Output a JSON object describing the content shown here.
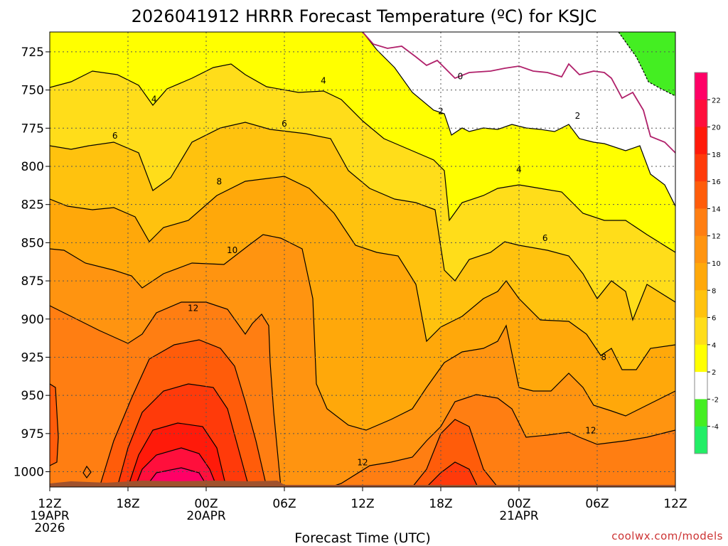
{
  "chart_data": {
    "type": "contour",
    "title": "2026041912 HRRR Forecast Temperature (ºC) for KSJC",
    "xlabel": "Forecast Time (UTC)",
    "ylabel": "",
    "y_ticks": [
      "725",
      "750",
      "775",
      "800",
      "825",
      "850",
      "875",
      "900",
      "925",
      "950",
      "975",
      "1000"
    ],
    "y_values": [
      725,
      750,
      775,
      800,
      825,
      850,
      875,
      900,
      925,
      950,
      975,
      1000
    ],
    "y_range": [
      712,
      1010
    ],
    "y_inverted": true,
    "x_range_hours": [
      0,
      48
    ],
    "x_ticks": [
      {
        "hour": 0,
        "line1": "12Z",
        "line2": "19APR",
        "line3": "2026"
      },
      {
        "hour": 6,
        "line1": "18Z",
        "line2": "",
        "line3": ""
      },
      {
        "hour": 12,
        "line1": "00Z",
        "line2": "20APR",
        "line3": ""
      },
      {
        "hour": 18,
        "line1": "06Z",
        "line2": "",
        "line3": ""
      },
      {
        "hour": 24,
        "line1": "12Z",
        "line2": "",
        "line3": ""
      },
      {
        "hour": 30,
        "line1": "18Z",
        "line2": "",
        "line3": ""
      },
      {
        "hour": 36,
        "line1": "00Z",
        "line2": "21APR",
        "line3": ""
      },
      {
        "hour": 42,
        "line1": "06Z",
        "line2": "",
        "line3": ""
      },
      {
        "hour": 48,
        "line1": "12Z",
        "line2": "",
        "line3": ""
      }
    ],
    "grid": true,
    "colorbar": {
      "labels": [
        "22",
        "20",
        "18",
        "16",
        "14",
        "12",
        "10",
        "8",
        "6",
        "4",
        "2",
        "-2",
        "-4"
      ],
      "colors": [
        "#ff0066",
        "#ff0f3c",
        "#ff1a0a",
        "#ff3a0a",
        "#ff5c0a",
        "#ff7e12",
        "#ff9410",
        "#ffa80a",
        "#ffc20e",
        "#ffdd1a",
        "#ffff00",
        "#ffffff",
        "#44ee22",
        "#22ee66"
      ]
    },
    "contour_labels": [
      {
        "text": "0",
        "hour": 31.5,
        "p": 741
      },
      {
        "text": "2",
        "hour": 30,
        "p": 764
      },
      {
        "text": "2",
        "hour": 40.5,
        "p": 767
      },
      {
        "text": "4",
        "hour": 8,
        "p": 756
      },
      {
        "text": "4",
        "hour": 21,
        "p": 744
      },
      {
        "text": "4",
        "hour": 36,
        "p": 802
      },
      {
        "text": "6",
        "hour": 5,
        "p": 780
      },
      {
        "text": "6",
        "hour": 18,
        "p": 772
      },
      {
        "text": "6",
        "hour": 38,
        "p": 847
      },
      {
        "text": "8",
        "hour": 13,
        "p": 810
      },
      {
        "text": "8",
        "hour": 42.5,
        "p": 925
      },
      {
        "text": "10",
        "hour": 14,
        "p": 855
      },
      {
        "text": "12",
        "hour": 11,
        "p": 893
      },
      {
        "text": "12",
        "hour": 24,
        "p": 994
      },
      {
        "text": "12",
        "hour": 41.5,
        "p": 973
      }
    ]
  },
  "credit": "coolwx.com/models"
}
